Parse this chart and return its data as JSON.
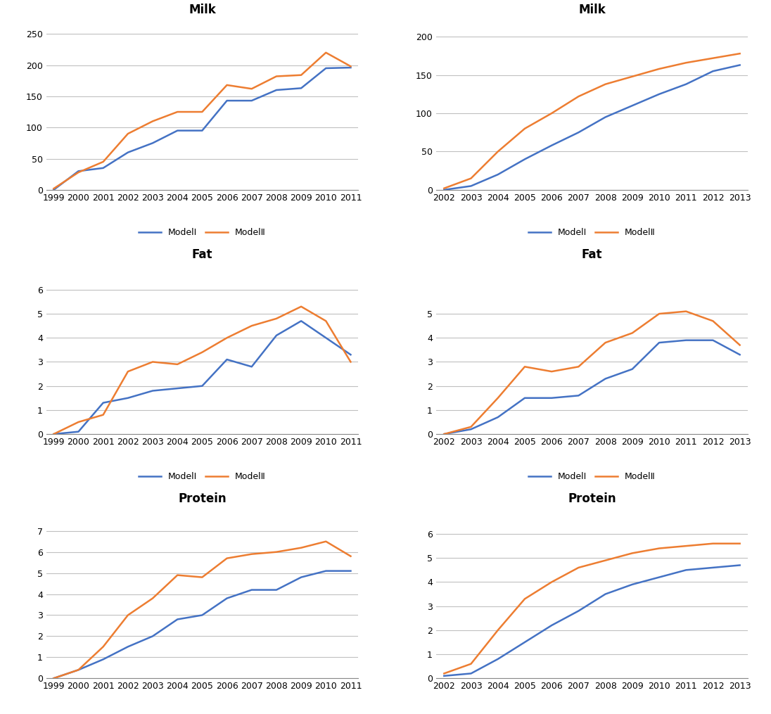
{
  "panels": [
    {
      "title": "Milk",
      "x_labels": [
        "1999",
        "2000",
        "2001",
        "2002",
        "2003",
        "2004",
        "2005",
        "2006",
        "2007",
        "2008",
        "2009",
        "2010",
        "2011"
      ],
      "model1": [
        0,
        30,
        35,
        60,
        75,
        95,
        95,
        143,
        143,
        160,
        163,
        195,
        196
      ],
      "model2": [
        2,
        28,
        45,
        90,
        110,
        125,
        125,
        168,
        162,
        182,
        184,
        220,
        198
      ],
      "ylim": [
        0,
        270
      ],
      "yticks": [
        0,
        50,
        100,
        150,
        200,
        250
      ]
    },
    {
      "title": "Milk",
      "x_labels": [
        "2002",
        "2003",
        "2004",
        "2005",
        "2006",
        "2007",
        "2008",
        "2009",
        "2010",
        "2011",
        "2012",
        "2013"
      ],
      "model1": [
        0,
        5,
        20,
        40,
        58,
        75,
        95,
        110,
        125,
        138,
        155,
        163
      ],
      "model2": [
        2,
        15,
        50,
        80,
        100,
        122,
        138,
        148,
        158,
        166,
        172,
        178
      ],
      "ylim": [
        0,
        220
      ],
      "yticks": [
        0,
        50,
        100,
        150,
        200
      ]
    },
    {
      "title": "Fat",
      "x_labels": [
        "1999",
        "2000",
        "2001",
        "2002",
        "2003",
        "2004",
        "2005",
        "2006",
        "2007",
        "2008",
        "2009",
        "2010",
        "2011"
      ],
      "model1": [
        0,
        0.1,
        1.3,
        1.5,
        1.8,
        1.9,
        2.0,
        3.1,
        2.8,
        4.1,
        4.7,
        4.0,
        3.3
      ],
      "model2": [
        0,
        0.5,
        0.8,
        2.6,
        3.0,
        2.9,
        3.4,
        4.0,
        4.5,
        4.8,
        5.3,
        4.7,
        3.0
      ],
      "ylim": [
        0,
        7
      ],
      "yticks": [
        0,
        1,
        2,
        3,
        4,
        5,
        6
      ]
    },
    {
      "title": "Fat",
      "x_labels": [
        "2002",
        "2003",
        "2004",
        "2005",
        "2006",
        "2007",
        "2008",
        "2009",
        "2010",
        "2011",
        "2012",
        "2013"
      ],
      "model1": [
        0,
        0.2,
        0.7,
        1.5,
        1.5,
        1.6,
        2.3,
        2.7,
        3.8,
        3.9,
        3.9,
        3.3
      ],
      "model2": [
        0,
        0.3,
        1.5,
        2.8,
        2.6,
        2.8,
        3.8,
        4.2,
        5.0,
        5.1,
        4.7,
        3.7
      ],
      "ylim": [
        0,
        7
      ],
      "yticks": [
        0,
        1,
        2,
        3,
        4,
        5
      ]
    },
    {
      "title": "Protein",
      "x_labels": [
        "1999",
        "2000",
        "2001",
        "2002",
        "2003",
        "2004",
        "2005",
        "2006",
        "2007",
        "2008",
        "2009",
        "2010",
        "2011"
      ],
      "model1": [
        0,
        0.4,
        0.9,
        1.5,
        2.0,
        2.8,
        3.0,
        3.8,
        4.2,
        4.2,
        4.8,
        5.1,
        5.1
      ],
      "model2": [
        0,
        0.4,
        1.5,
        3.0,
        3.8,
        4.9,
        4.8,
        5.7,
        5.9,
        6.0,
        6.2,
        6.5,
        5.8
      ],
      "ylim": [
        0,
        8
      ],
      "yticks": [
        0,
        1,
        2,
        3,
        4,
        5,
        6,
        7
      ]
    },
    {
      "title": "Protein",
      "x_labels": [
        "2002",
        "2003",
        "2004",
        "2005",
        "2006",
        "2007",
        "2008",
        "2009",
        "2010",
        "2011",
        "2012",
        "2013"
      ],
      "model1": [
        0.1,
        0.2,
        0.8,
        1.5,
        2.2,
        2.8,
        3.5,
        3.9,
        4.2,
        4.5,
        4.6,
        4.7
      ],
      "model2": [
        0.2,
        0.6,
        2.0,
        3.3,
        4.0,
        4.6,
        4.9,
        5.2,
        5.4,
        5.5,
        5.6,
        5.6
      ],
      "ylim": [
        0,
        7
      ],
      "yticks": [
        0,
        1,
        2,
        3,
        4,
        5,
        6
      ]
    }
  ],
  "color_model1": "#4472C4",
  "color_model2": "#ED7D31",
  "legend_label1": "ModelⅠ",
  "legend_label2": "ModelⅡ",
  "bg_color": "#FFFFFF",
  "panel_bg": "#FFFFFF",
  "grid_color": "#C0C0C0",
  "title_fontsize": 12,
  "tick_fontsize": 9,
  "legend_fontsize": 9,
  "line_width": 1.8
}
